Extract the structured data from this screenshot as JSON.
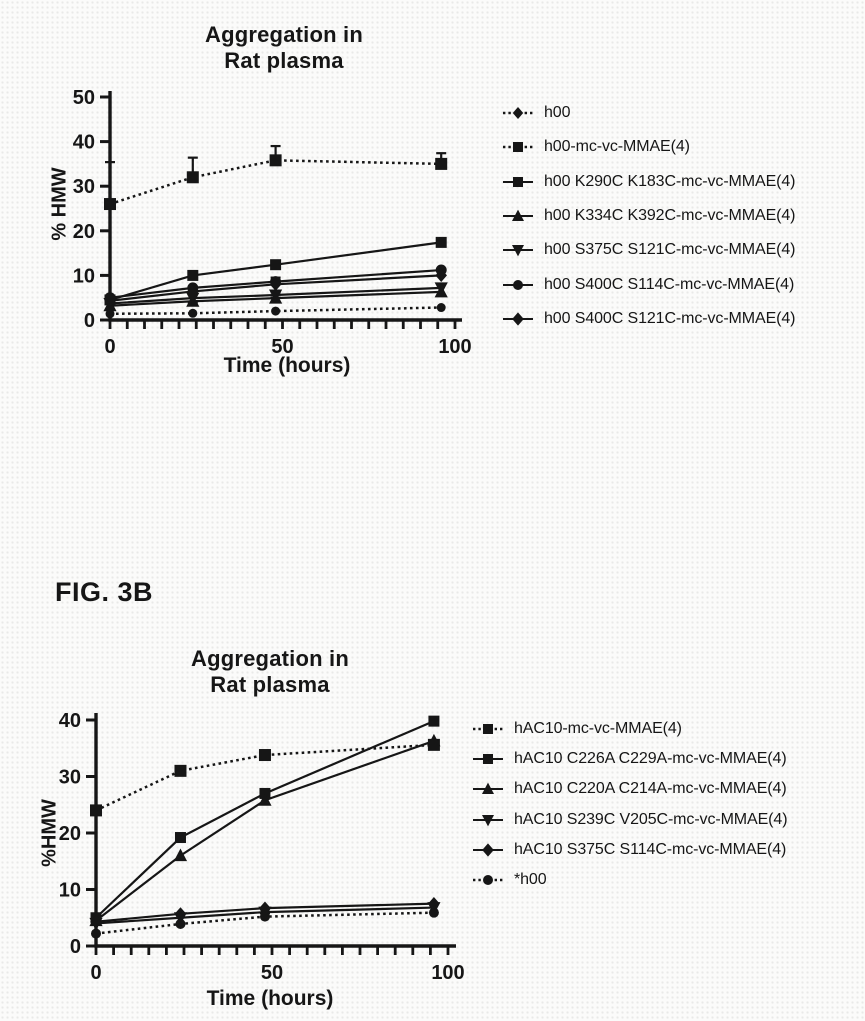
{
  "page": {
    "background": "#fbfbfa",
    "ink": "#161616"
  },
  "fig_label": "FIG. 3B",
  "chart_data": [
    {
      "type": "line",
      "title": "Aggregation in\nRat plasma",
      "xlabel": "Time (hours)",
      "ylabel": "% HMW",
      "xlim": [
        0,
        100
      ],
      "ylim": [
        0,
        50
      ],
      "xticks": [
        0,
        50,
        100
      ],
      "x_minor_step": 5,
      "yticks": [
        0,
        10,
        20,
        30,
        40,
        50
      ],
      "grid": false,
      "legend_position": "right",
      "x": [
        0,
        24,
        48,
        96
      ],
      "series": [
        {
          "name": "h00",
          "marker": "circle",
          "legend_marker": "diamond",
          "size": 9,
          "line": "dashed",
          "values": [
            1.4,
            1.5,
            2.0,
            2.8
          ]
        },
        {
          "name": "h00-mc-vc-MMAE(4)",
          "marker": "square",
          "size": 12,
          "line": "dashed",
          "values": [
            26,
            32,
            35.8,
            35
          ],
          "err_up": [
            9.4,
            4.4,
            3.2,
            2.4
          ]
        },
        {
          "name": "h00 K290C K183C-mc-vc-MMAE(4)",
          "marker": "square",
          "size": 11,
          "line": "solid",
          "values": [
            4.5,
            10,
            12.4,
            17.4
          ]
        },
        {
          "name": "h00 K334C K392C-mc-vc-MMAE(4)",
          "marker": "triangle-up",
          "size": 11,
          "line": "solid",
          "values": [
            3.2,
            4.2,
            4.9,
            6.3
          ]
        },
        {
          "name": "h00 S375C S121C-mc-vc-MMAE(4)",
          "marker": "triangle-down",
          "size": 11,
          "line": "solid",
          "values": [
            3.7,
            4.9,
            5.6,
            7.2
          ],
          "err_up": [
            0,
            1.0,
            0.6,
            0
          ],
          "err_down": [
            0,
            1.0,
            0.6,
            0
          ]
        },
        {
          "name": "h00 S400C S114C-mc-vc-MMAE(4)",
          "marker": "circle",
          "size": 11,
          "line": "solid",
          "values": [
            5.0,
            7.2,
            8.6,
            11.2
          ],
          "err_up": [
            0,
            0,
            0.9,
            0
          ],
          "err_down": [
            0,
            1.2,
            0,
            0
          ]
        },
        {
          "name": "h00 S400C S121C-mc-vc-MMAE(4)",
          "marker": "diamond",
          "size": 10,
          "line": "solid",
          "values": [
            4.3,
            6.4,
            8.0,
            10.0
          ]
        }
      ]
    },
    {
      "type": "line",
      "title": "Aggregation in\nRat plasma",
      "xlabel": "Time (hours)",
      "ylabel": "%HMW",
      "xlim": [
        0,
        100
      ],
      "ylim": [
        0,
        40
      ],
      "xticks": [
        0,
        50,
        100
      ],
      "x_minor_step": 5,
      "yticks": [
        0,
        10,
        20,
        30,
        40
      ],
      "grid": false,
      "legend_position": "right",
      "x": [
        0,
        24,
        48,
        96
      ],
      "series": [
        {
          "name": "hAC10-mc-vc-MMAE(4)",
          "marker": "square",
          "size": 12,
          "line": "dashed",
          "values": [
            24,
            31,
            33.8,
            35.6
          ]
        },
        {
          "name": "hAC10 C226A C229A-mc-vc-MMAE(4)",
          "marker": "square",
          "size": 11,
          "line": "solid",
          "values": [
            5.0,
            19.2,
            27,
            39.8
          ]
        },
        {
          "name": "hAC10 C220A C214A-mc-vc-MMAE(4)",
          "marker": "triangle-up",
          "size": 11,
          "line": "solid",
          "values": [
            4.5,
            16,
            25.8,
            36.3
          ]
        },
        {
          "name": "hAC10 S239C V205C-mc-vc-MMAE(4)",
          "marker": "triangle-down",
          "size": 11,
          "line": "solid",
          "values": [
            4.0,
            5.0,
            6.0,
            6.8
          ]
        },
        {
          "name": "hAC10 S375C S114C-mc-vc-MMAE(4)",
          "marker": "diamond",
          "size": 10,
          "line": "solid",
          "values": [
            4.3,
            5.7,
            6.7,
            7.5
          ],
          "err_down": [
            0,
            0,
            0.9,
            0
          ]
        },
        {
          "name": "*h00",
          "marker": "circle",
          "size": 10,
          "line": "dashed",
          "values": [
            2.2,
            3.9,
            5.2,
            5.9
          ]
        }
      ]
    }
  ]
}
